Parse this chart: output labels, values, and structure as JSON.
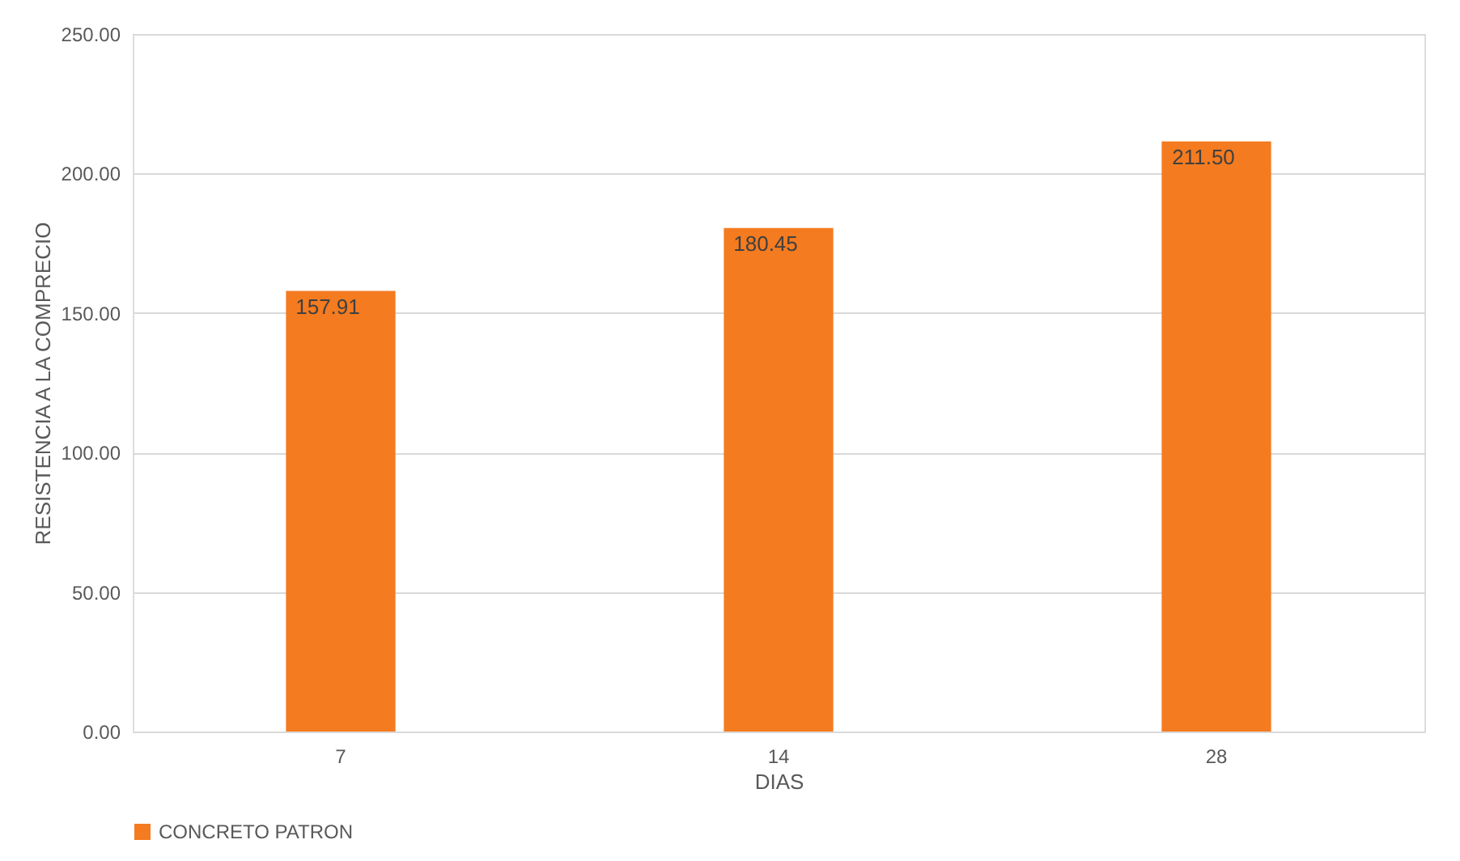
{
  "chart_data": {
    "type": "bar",
    "xlabel": "DIAS",
    "ylabel": "RESISTENCIA A LA COMPRECIO",
    "categories": [
      "7",
      "14",
      "28"
    ],
    "series": [
      {
        "name": "CONCRETO PATRON",
        "color": "#f47b20",
        "values": [
          157.91,
          180.45,
          211.5
        ],
        "value_labels": [
          "157.91",
          "180.45",
          "211.50"
        ]
      }
    ],
    "ylim": [
      0,
      250
    ],
    "yticks": [
      {
        "value": 0,
        "label": "0.00"
      },
      {
        "value": 50,
        "label": "50.00"
      },
      {
        "value": 100,
        "label": "100.00"
      },
      {
        "value": 150,
        "label": "150.00"
      },
      {
        "value": 200,
        "label": "200.00"
      },
      {
        "value": 250,
        "label": "250.00"
      }
    ],
    "grid": "y",
    "legend": "bottom"
  }
}
